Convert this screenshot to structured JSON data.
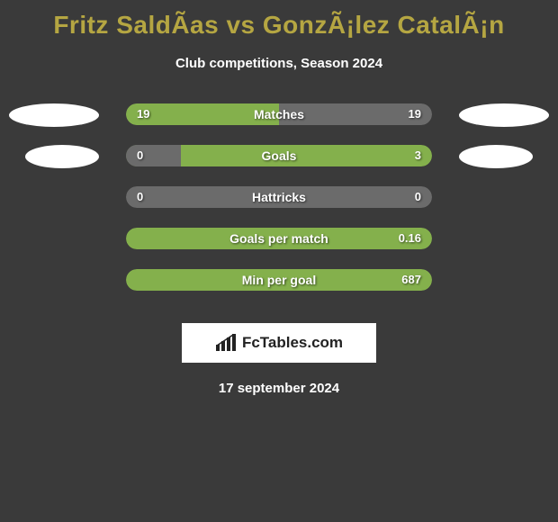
{
  "title": "Fritz SaldÃ­as vs GonzÃ¡lez CatalÃ¡n",
  "subtitle": "Club competitions, Season 2024",
  "date": "17 september 2024",
  "logo": "FcTables.com",
  "colors": {
    "accent": "#b5a642",
    "bar_neutral": "#6b6b6b",
    "bar_left": "#84b04c",
    "bar_right": "#84b04c",
    "oval": "#ffffff",
    "text": "#ffffff",
    "title": "#b5a642",
    "bg": "#3a3a3a"
  },
  "rows": [
    {
      "label": "Matches",
      "left_value": "19",
      "right_value": "19",
      "left_pct": 50,
      "right_pct": 50,
      "left_color": "#84b04c",
      "right_color": "#6b6b6b",
      "bg_color": "#6b6b6b",
      "show_ovals": true
    },
    {
      "label": "Goals",
      "left_value": "0",
      "right_value": "3",
      "left_pct": 18,
      "right_pct": 82,
      "left_color": "#6b6b6b",
      "right_color": "#84b04c",
      "bg_color": "#84b04c",
      "show_ovals": true
    },
    {
      "label": "Hattricks",
      "left_value": "0",
      "right_value": "0",
      "left_pct": 0,
      "right_pct": 0,
      "left_color": "#6b6b6b",
      "right_color": "#6b6b6b",
      "bg_color": "#6b6b6b",
      "show_ovals": false
    },
    {
      "label": "Goals per match",
      "left_value": "",
      "right_value": "0.16",
      "left_pct": 0,
      "right_pct": 100,
      "left_color": "#84b04c",
      "right_color": "#84b04c",
      "bg_color": "#84b04c",
      "show_ovals": false
    },
    {
      "label": "Min per goal",
      "left_value": "",
      "right_value": "687",
      "left_pct": 0,
      "right_pct": 100,
      "left_color": "#84b04c",
      "right_color": "#84b04c",
      "bg_color": "#84b04c",
      "show_ovals": false
    }
  ]
}
